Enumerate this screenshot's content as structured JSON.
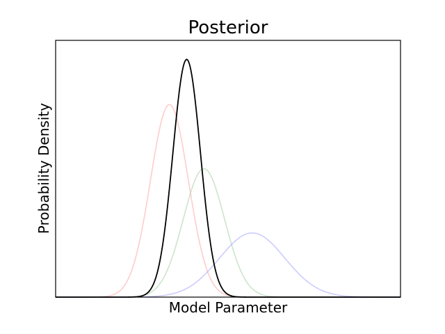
{
  "chart_data": {
    "type": "line",
    "title": "Posterior",
    "xlabel": "Model Parameter",
    "ylabel": "Probability Density",
    "x_ticks_shown": false,
    "y_ticks_shown": false,
    "grid": false,
    "xlim": [
      0,
      1
    ],
    "ylim": [
      0,
      1.08
    ],
    "series": [
      {
        "role": "curve-red",
        "mean": 0.33,
        "sd": 0.055,
        "peak": 0.81,
        "color": "#ff9999",
        "opacity": 0.5
      },
      {
        "role": "curve-green",
        "mean": 0.43,
        "sd": 0.06,
        "peak": 0.54,
        "color": "#99cc99",
        "opacity": 0.5
      },
      {
        "role": "curve-blue",
        "mean": 0.57,
        "sd": 0.095,
        "peak": 0.27,
        "color": "#9999ff",
        "opacity": 0.5
      },
      {
        "role": "curve-black",
        "mean": 0.38,
        "sd": 0.04,
        "peak": 1.0,
        "color": "#000000",
        "opacity": 1.0
      }
    ]
  }
}
